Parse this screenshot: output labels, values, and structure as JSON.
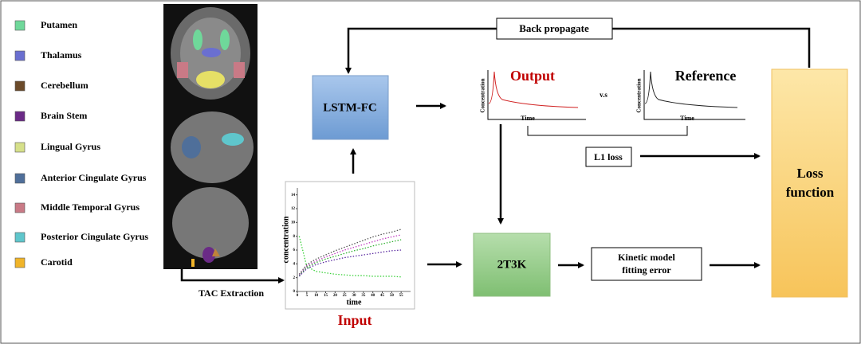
{
  "legend": [
    {
      "label": "Putamen",
      "color": "#6fd89a"
    },
    {
      "label": "Thalamus",
      "color": "#6a6fd0"
    },
    {
      "label": "Cerebellum",
      "color": "#6b4a2a"
    },
    {
      "label": "Brain Stem",
      "color": "#6a2a86"
    },
    {
      "label": "Lingual Gyrus",
      "color": "#d6e08a"
    },
    {
      "label": "Anterior Cingulate Gyrus",
      "color": "#4f6f9a"
    },
    {
      "label": "Middle Temporal Gyrus",
      "color": "#c97a86"
    },
    {
      "label": "Posterior Cingulate Gyrus",
      "color": "#5fc6cc"
    },
    {
      "label": "Carotid",
      "color": "#f0b429"
    }
  ],
  "tac_extraction": "TAC Extraction",
  "input_plot": {
    "title": "Input",
    "x_label": "time",
    "y_label": "concentration",
    "xlim": [
      0,
      60
    ],
    "ylim": [
      0,
      15
    ],
    "xticks": [
      0,
      5,
      10,
      15,
      20,
      25,
      30,
      35,
      40,
      45,
      50,
      55
    ],
    "yticks": [
      0,
      2,
      4,
      6,
      8,
      10,
      12,
      14
    ],
    "x": [
      1,
      5,
      10,
      15,
      20,
      25,
      30,
      35,
      40,
      45,
      50,
      55
    ],
    "series": [
      {
        "color": "#3ad13a",
        "values": [
          8,
          3.6,
          2.9,
          2.7,
          2.5,
          2.4,
          2.3,
          2.3,
          2.2,
          2.2,
          2.2,
          2.1
        ]
      },
      {
        "color": "#555555",
        "values": [
          2.5,
          3.9,
          4.7,
          5.3,
          5.9,
          6.4,
          6.9,
          7.4,
          7.9,
          8.3,
          8.6,
          9
        ]
      },
      {
        "color": "#c040c0",
        "values": [
          2.4,
          3.7,
          4.4,
          5,
          5.5,
          6,
          6.4,
          6.8,
          7.2,
          7.6,
          7.9,
          8.2
        ]
      },
      {
        "color": "#30b030",
        "values": [
          2.3,
          3.5,
          4.2,
          4.7,
          5.1,
          5.5,
          5.9,
          6.2,
          6.6,
          6.9,
          7.2,
          7.5
        ]
      },
      {
        "color": "#5a2aa0",
        "values": [
          2.2,
          3.3,
          3.9,
          4.3,
          4.6,
          4.9,
          5.1,
          5.3,
          5.5,
          5.7,
          5.9,
          6
        ]
      }
    ]
  },
  "lstm": "LSTM-FC",
  "output_plot": {
    "title": "Output",
    "y_label": "Concentration",
    "x_label": "Time"
  },
  "vs": "v.s",
  "reference_plot": {
    "title": "Reference",
    "y_label": "Concentration",
    "x_label": "Time"
  },
  "back_propagate": "Back propagate",
  "l1_loss": "L1 loss",
  "model": "2T3K",
  "kinetic_error": [
    "Kinetic model",
    "fitting error"
  ],
  "loss_function": [
    "Loss",
    "function"
  ]
}
